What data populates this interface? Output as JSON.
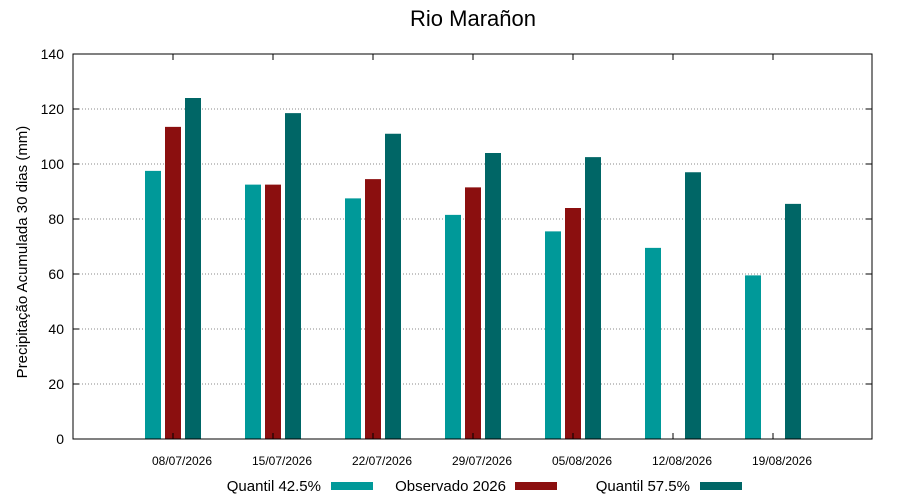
{
  "chart_data": {
    "type": "bar",
    "title": "Rio Marañon",
    "xlabel": "",
    "ylabel": "Precipitação Acumulada 30 dias (mm)",
    "ylim": [
      0,
      140
    ],
    "yticks": [
      0,
      20,
      40,
      60,
      80,
      100,
      120,
      140
    ],
    "grid": true,
    "legend_position": "bottom",
    "categories": [
      "08/07/2026",
      "15/07/2026",
      "22/07/2026",
      "29/07/2026",
      "05/08/2026",
      "12/08/2026",
      "19/08/2026"
    ],
    "series": [
      {
        "name": "Quantil 42.5%",
        "color": "#009999",
        "values": [
          97.5,
          92.5,
          87.5,
          81.5,
          75.5,
          69.5,
          59.5
        ]
      },
      {
        "name": "Observado 2026",
        "color": "#8b0f0f",
        "values": [
          113.5,
          92.5,
          94.5,
          91.5,
          84.0,
          null,
          null
        ]
      },
      {
        "name": "Quantil 57.5%",
        "color": "#006666",
        "values": [
          124.0,
          118.5,
          111.0,
          104.0,
          102.5,
          97.0,
          85.5
        ]
      }
    ]
  }
}
